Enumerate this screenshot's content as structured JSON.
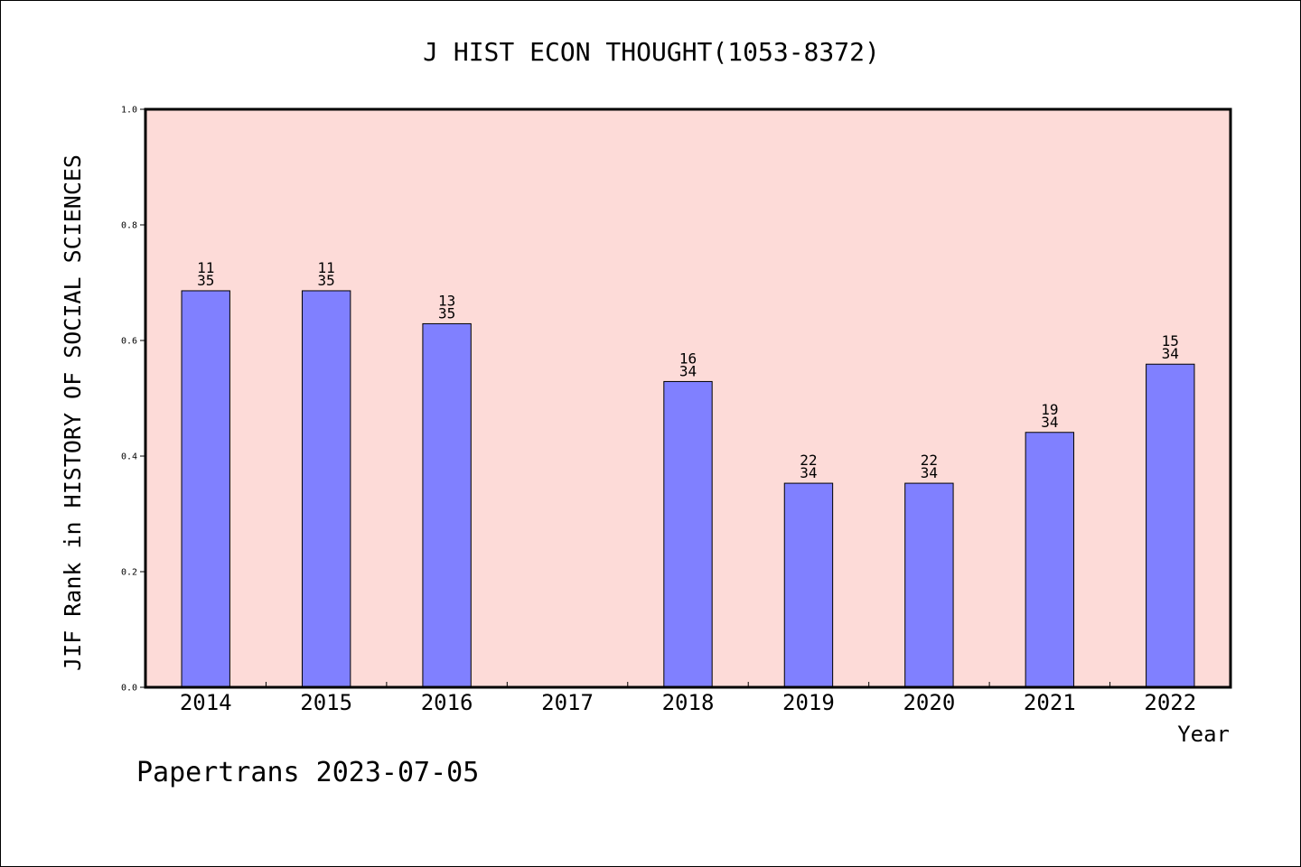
{
  "chart_data": {
    "type": "bar",
    "title": "J HIST ECON THOUGHT(1053-8372)",
    "xlabel": "Year",
    "ylabel": "JIF Rank in HISTORY OF SOCIAL SCIENCES",
    "ylim": [
      0,
      1
    ],
    "yticks": [
      "0.0",
      "0.2",
      "0.4",
      "0.6",
      "0.8",
      "1.0"
    ],
    "grid": false,
    "categories": [
      "2014",
      "2015",
      "2016",
      "2017",
      "2018",
      "2019",
      "2020",
      "2021",
      "2022"
    ],
    "values": [
      0.686,
      0.686,
      0.629,
      null,
      0.529,
      0.353,
      0.353,
      0.441,
      0.559
    ],
    "bar_labels": [
      {
        "rank": "11",
        "total": "35"
      },
      {
        "rank": "11",
        "total": "35"
      },
      {
        "rank": "13",
        "total": "35"
      },
      null,
      {
        "rank": "16",
        "total": "34"
      },
      {
        "rank": "22",
        "total": "34"
      },
      {
        "rank": "22",
        "total": "34"
      },
      {
        "rank": "19",
        "total": "34"
      },
      {
        "rank": "15",
        "total": "34"
      }
    ],
    "colors": {
      "bar": "#8080ff",
      "plot_background": "#fddbd8",
      "axis": "#000000"
    }
  },
  "footer": {
    "text": "Papertrans 2023-07-05"
  }
}
